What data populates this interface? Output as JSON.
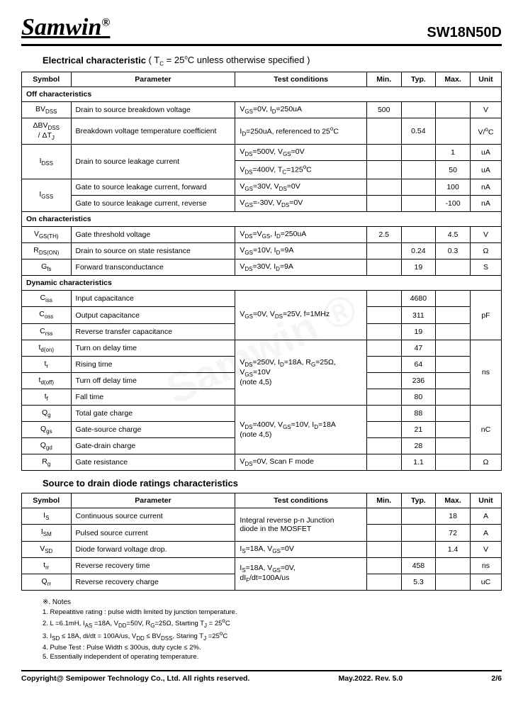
{
  "header": {
    "logo": "Samwin",
    "reg": "®",
    "partno": "SW18N50D"
  },
  "section1": {
    "title_bold": "Electrical characteristic",
    "title_rest": " ( T",
    "title_sub": "C",
    "title_rest2": " = 25",
    "title_sup": "o",
    "title_rest3": "C unless otherwise specified )"
  },
  "cols": {
    "symbol": "Symbol",
    "parameter": "Parameter",
    "conditions": "Test conditions",
    "min": "Min.",
    "typ": "Typ.",
    "max": "Max.",
    "unit": "Unit"
  },
  "groups": {
    "off": "Off characteristics",
    "on": "On characteristics",
    "dyn": "Dynamic characteristics"
  },
  "rows": {
    "bvdss": {
      "sym": "BV",
      "sub": "DSS",
      "param": "Drain to source breakdown voltage",
      "cond": "V",
      "c1": "GS",
      "c2": "=0V, I",
      "c3": "D",
      "c4": "=250uA",
      "min": "500",
      "typ": "",
      "max": "",
      "unit": "V"
    },
    "dbvdss": {
      "sym1": "ΔBV",
      "sub1": "DSS",
      "sym2": "/ ΔT",
      "sub2": "J",
      "param": "Breakdown voltage temperature coefficient",
      "cond": "I",
      "c1": "D",
      "c2": "=250uA, referenced to 25",
      "c3": "o",
      "c4": "C",
      "min": "",
      "typ": "0.54",
      "max": "",
      "unit": "V/",
      "u2": "o",
      "u3": "C"
    },
    "idss1": {
      "sym": "I",
      "sub": "DSS",
      "param": "Drain to source leakage current",
      "cond": "V",
      "c1": "DS",
      "c2": "=500V, V",
      "c3": "GS",
      "c4": "=0V",
      "min": "",
      "typ": "",
      "max": "1",
      "unit": "uA"
    },
    "idss2": {
      "cond": "V",
      "c1": "DS",
      "c2": "=400V, T",
      "c3": "C",
      "c4": "=125",
      "c5": "o",
      "c6": "C",
      "min": "",
      "typ": "",
      "max": "50",
      "unit": "uA"
    },
    "igss1": {
      "sym": "I",
      "sub": "GSS",
      "param": "Gate to source leakage current, forward",
      "cond": "V",
      "c1": "GS",
      "c2": "=30V, V",
      "c3": "DS",
      "c4": "=0V",
      "min": "",
      "typ": "",
      "max": "100",
      "unit": "nA"
    },
    "igss2": {
      "param": "Gate to source leakage current, reverse",
      "cond": "V",
      "c1": "GS",
      "c2": "=-30V, V",
      "c3": "DS",
      "c4": "=0V",
      "min": "",
      "typ": "",
      "max": "-100",
      "unit": "nA"
    },
    "vgsth": {
      "sym": "V",
      "sub": "GS(TH)",
      "param": "Gate threshold voltage",
      "cond": "V",
      "c1": "DS",
      "c2": "=V",
      "c3": "GS",
      "c4": ", I",
      "c5": "D",
      "c6": "=250uA",
      "min": "2.5",
      "typ": "",
      "max": "4.5",
      "unit": "V"
    },
    "rdson": {
      "sym": "R",
      "sub": "DS(ON)",
      "param": "Drain to source on state resistance",
      "cond": "V",
      "c1": "GS",
      "c2": "=10V, I",
      "c3": "D",
      "c4": "=9A",
      "min": "",
      "typ": "0.24",
      "max": "0.3",
      "unit": "Ω"
    },
    "gfs": {
      "sym": "G",
      "sub": "fs",
      "param": "Forward transconductance",
      "cond": "V",
      "c1": "DS",
      "c2": "=30V, I",
      "c3": "D",
      "c4": "=9A",
      "min": "",
      "typ": "19",
      "max": "",
      "unit": "S"
    },
    "ciss": {
      "sym": "C",
      "sub": "iss",
      "param": "Input capacitance",
      "typ": "4680"
    },
    "coss": {
      "sym": "C",
      "sub": "oss",
      "param": "Output capacitance",
      "cond": "V",
      "c1": "GS",
      "c2": "=0V, V",
      "c3": "DS",
      "c4": "=25V, f=1MHz",
      "typ": "311",
      "unit": "pF"
    },
    "crss": {
      "sym": "C",
      "sub": "rss",
      "param": "Reverse transfer capacitance",
      "typ": "19"
    },
    "tdon": {
      "sym": "t",
      "sub": "d(on)",
      "param": "Turn on delay time",
      "typ": "47"
    },
    "tr": {
      "sym": "t",
      "sub": "r",
      "param": "Rising time",
      "cond1": "V",
      "c1": "DS",
      "c2": "=250V, I",
      "c3": "D",
      "c4": "=18A, R",
      "c5": "G",
      "c6": "=25Ω,",
      "cond2": "V",
      "c7": "GS",
      "c8": "=10V",
      "note": "(note 4,5)",
      "typ": "64",
      "unit": "ns"
    },
    "tdoff": {
      "sym": "t",
      "sub": "d(off)",
      "param": "Turn off delay time",
      "typ": "236"
    },
    "tf": {
      "sym": "t",
      "sub": "f",
      "param": "Fall time",
      "typ": "80"
    },
    "qg": {
      "sym": "Q",
      "sub": "g",
      "param": "Total gate charge",
      "typ": "88"
    },
    "qgs": {
      "sym": "Q",
      "sub": "gs",
      "param": "Gate-source charge",
      "cond": "V",
      "c1": "DS",
      "c2": "=400V, V",
      "c3": "GS",
      "c4": "=10V, I",
      "c5": "D",
      "c6": "=18A",
      "note": "(note 4,5)",
      "typ": "21",
      "unit": "nC"
    },
    "qgd": {
      "sym": "Q",
      "sub": "gd",
      "param": "Gate-drain charge",
      "typ": "28"
    },
    "rg": {
      "sym": "R",
      "sub": "g",
      "param": "Gate resistance",
      "cond": "V",
      "c1": "DS",
      "c2": "=0V, Scan F mode",
      "typ": "1.1",
      "unit": "Ω"
    }
  },
  "section2": {
    "title": "Source to drain diode ratings characteristics"
  },
  "rows2": {
    "is": {
      "sym": "I",
      "sub": "S",
      "param": "Continuous source current",
      "cond1": "Integral reverse p-n Junction",
      "cond2": "diode in the MOSFET",
      "max": "18",
      "unit": "A"
    },
    "ism": {
      "sym": "I",
      "sub": "SM",
      "param": "Pulsed source current",
      "max": "72",
      "unit": "A"
    },
    "vsd": {
      "sym": "V",
      "sub": "SD",
      "param": "Diode forward voltage drop.",
      "cond": "I",
      "c1": "S",
      "c2": "=18A, V",
      "c3": "GS",
      "c4": "=0V",
      "max": "1.4",
      "unit": "V"
    },
    "trr": {
      "sym": "t",
      "sub": "rr",
      "param": "Reverse recovery time",
      "cond": "I",
      "c1": "S",
      "c2": "=18A, V",
      "c3": "GS",
      "c4": "=0V,",
      "cond2": "dI",
      "c5": "F",
      "c6": "/dt=100A/us",
      "typ": "458",
      "unit": "ns"
    },
    "qrr": {
      "sym": "Q",
      "sub": "rr",
      "param": "Reverse recovery charge",
      "typ": "5.3",
      "unit": "uC"
    }
  },
  "notes": {
    "title": "※. Notes",
    "n1": "1.      Repeatitive rating : pulse width limited by junction temperature.",
    "n2a": "2.      L =6.1mH, I",
    "n2b": " =18A, V",
    "n2c": "=50V, R",
    "n2d": "=25Ω, Starting T",
    "n2e": " = 25",
    "n2f": "C",
    "n3a": "3.      I",
    "n3b": " ≤ 18A, di/dt = 100A/us, V",
    "n3c": " ≤ BV",
    "n3d": ", Staring T",
    "n3e": " =25",
    "n3f": "C",
    "n4": "4.      Pulse Test : Pulse Width ≤ 300us, duty cycle ≤ 2%.",
    "n5": "5.      Essentially independent of operating temperature."
  },
  "footer": {
    "copyright": "Copyright@ Semipower Technology Co., Ltd. All rights reserved.",
    "date": "May.2022. Rev. 5.0",
    "page": "2/6"
  },
  "watermark": "Samwin ®"
}
